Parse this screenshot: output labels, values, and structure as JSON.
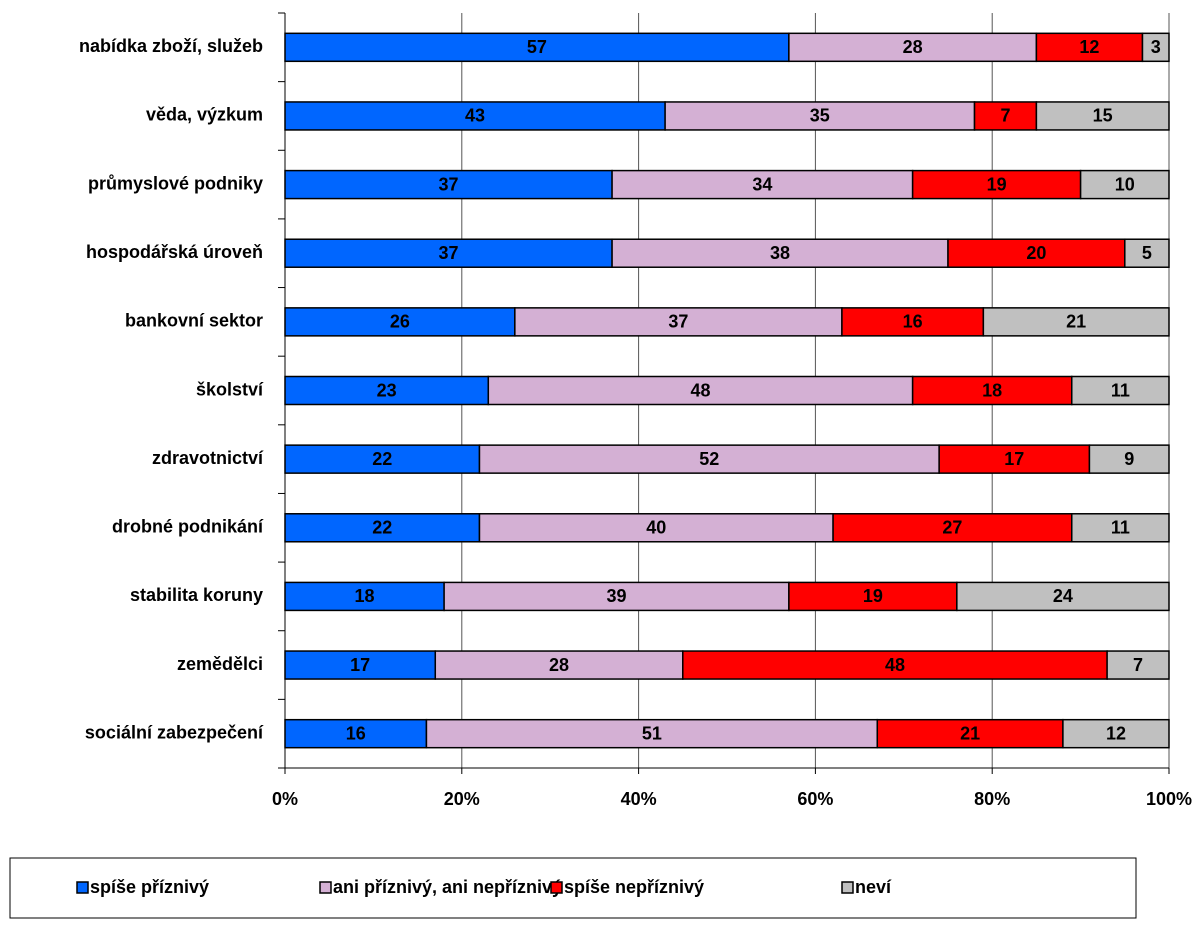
{
  "chart_data": {
    "type": "stacked-barh",
    "categories": [
      "nabídka zboží, služeb",
      "věda, výzkum",
      "průmyslové podniky",
      "hospodářská úroveň",
      "bankovní sektor",
      "školství",
      "zdravotnictví",
      "drobné podnikání",
      "stabilita koruny",
      "zemědělci",
      "sociální zabezpečení"
    ],
    "series": [
      {
        "name": "spíše příznivý",
        "color": "#0066ff",
        "values": [
          57,
          43,
          37,
          37,
          26,
          23,
          22,
          22,
          18,
          17,
          16
        ]
      },
      {
        "name": "ani příznivý, ani nepříznivý",
        "color": "#d4b0d4",
        "values": [
          28,
          35,
          34,
          38,
          37,
          48,
          52,
          40,
          39,
          28,
          51
        ]
      },
      {
        "name": "spíše nepříznivý",
        "color": "#ff0000",
        "values": [
          12,
          7,
          19,
          20,
          16,
          18,
          17,
          27,
          19,
          48,
          21
        ]
      },
      {
        "name": "neví",
        "color": "#c0c0c0",
        "values": [
          3,
          15,
          10,
          5,
          21,
          11,
          9,
          11,
          24,
          7,
          12
        ]
      }
    ],
    "xlim": [
      0,
      100
    ],
    "xticks": [
      {
        "value": 0,
        "label": "0%"
      },
      {
        "value": 20,
        "label": "20%"
      },
      {
        "value": 40,
        "label": "40%"
      },
      {
        "value": 60,
        "label": "60%"
      },
      {
        "value": 80,
        "label": "80%"
      },
      {
        "value": 100,
        "label": "100%"
      }
    ],
    "grid": true
  }
}
